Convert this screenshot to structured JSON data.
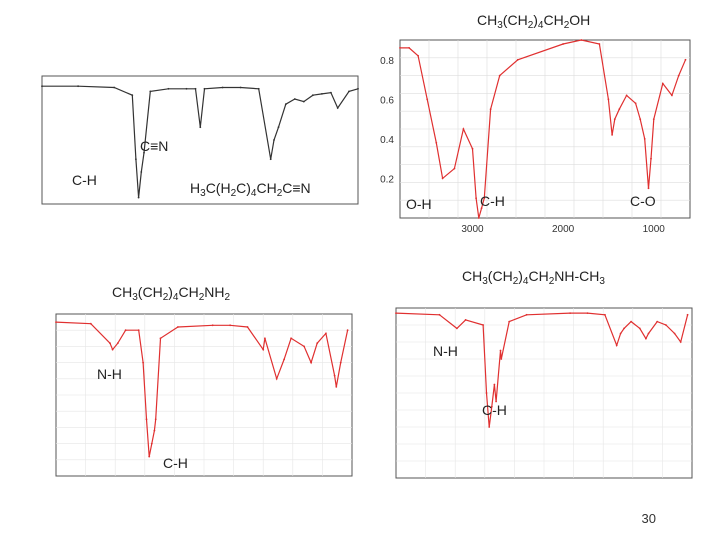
{
  "page_number": "30",
  "spectra": [
    {
      "id": "nitrile",
      "title_parts": [
        "H",
        "3",
        "C(H",
        "2",
        "C)",
        "4",
        "CH",
        "2",
        "C≡N"
      ],
      "annotations": [
        "C≡N",
        "C-H"
      ]
    },
    {
      "id": "alcohol",
      "title_parts": [
        "CH",
        "3",
        "(CH",
        "2",
        ")",
        "4",
        "CH",
        "2",
        "OH"
      ],
      "annotations": [
        "O-H",
        "C-H",
        "C-O"
      ],
      "x_ticks": [
        "3000",
        "2000",
        "1000"
      ],
      "y_ticks": [
        "0.2",
        "0.4",
        "0.6",
        "0.8"
      ]
    },
    {
      "id": "primary-amine",
      "title_parts": [
        "CH",
        "3",
        "(CH",
        "2",
        ")",
        "4",
        "CH",
        "2",
        "NH",
        "2",
        ""
      ],
      "annotations": [
        "N-H",
        "C-H"
      ]
    },
    {
      "id": "secondary-amine",
      "title_parts": [
        "CH",
        "3",
        "(CH",
        "2",
        ")",
        "4",
        "CH",
        "2",
        "NH-CH",
        "3",
        ""
      ],
      "annotations": [
        "N-H",
        "C-H"
      ]
    }
  ],
  "chart_data": [
    {
      "type": "line",
      "title": "H3C(H2C)4CH2C≡N",
      "xlabel": "",
      "ylabel": "",
      "x": [
        4000,
        3600,
        3200,
        3000,
        2960,
        2930,
        2900,
        2870,
        2800,
        2600,
        2400,
        2300,
        2247,
        2200,
        2000,
        1800,
        1600,
        1467,
        1430,
        1380,
        1300,
        1200,
        1100,
        1000,
        900,
        800,
        725,
        600,
        500
      ],
      "series": [
        {
          "values": [
            0.92,
            0.92,
            0.91,
            0.85,
            0.35,
            0.05,
            0.25,
            0.4,
            0.88,
            0.9,
            0.9,
            0.9,
            0.6,
            0.9,
            0.91,
            0.91,
            0.9,
            0.35,
            0.5,
            0.6,
            0.78,
            0.82,
            0.8,
            0.85,
            0.86,
            0.87,
            0.75,
            0.88,
            0.9
          ]
        }
      ]
    },
    {
      "type": "line",
      "title": "CH3(CH2)4CH2OH",
      "xlabel": "",
      "ylabel": "",
      "x_ticks": [
        3000,
        2000,
        1000
      ],
      "ylim": [
        0.0,
        0.9
      ],
      "x": [
        3800,
        3700,
        3600,
        3500,
        3400,
        3330,
        3200,
        3100,
        3000,
        2960,
        2930,
        2900,
        2870,
        2800,
        2700,
        2500,
        2000,
        1800,
        1600,
        1500,
        1460,
        1430,
        1380,
        1300,
        1200,
        1150,
        1100,
        1058,
        1030,
        1000,
        900,
        800,
        725,
        650
      ],
      "series": [
        {
          "values": [
            0.86,
            0.86,
            0.82,
            0.6,
            0.38,
            0.2,
            0.25,
            0.45,
            0.35,
            0.1,
            0.0,
            0.05,
            0.1,
            0.55,
            0.72,
            0.8,
            0.88,
            0.9,
            0.88,
            0.6,
            0.42,
            0.5,
            0.55,
            0.62,
            0.58,
            0.5,
            0.4,
            0.15,
            0.3,
            0.5,
            0.68,
            0.62,
            0.72,
            0.8
          ]
        }
      ]
    },
    {
      "type": "line",
      "title": "CH3(CH2)4CH2NH2",
      "xlabel": "",
      "ylabel": "",
      "x": [
        4000,
        3600,
        3380,
        3350,
        3290,
        3200,
        3050,
        3000,
        2960,
        2930,
        2900,
        2870,
        2855,
        2800,
        2600,
        2200,
        2000,
        1800,
        1620,
        1600,
        1465,
        1380,
        1300,
        1150,
        1070,
        1000,
        900,
        800,
        780,
        730,
        650
      ],
      "series": [
        {
          "values": [
            0.95,
            0.94,
            0.82,
            0.78,
            0.82,
            0.9,
            0.9,
            0.7,
            0.35,
            0.12,
            0.2,
            0.28,
            0.35,
            0.85,
            0.92,
            0.93,
            0.93,
            0.92,
            0.78,
            0.85,
            0.6,
            0.72,
            0.85,
            0.8,
            0.7,
            0.82,
            0.88,
            0.62,
            0.55,
            0.7,
            0.9
          ]
        }
      ]
    },
    {
      "type": "line",
      "title": "CH3(CH2)4CH2NH-CH3",
      "xlabel": "",
      "ylabel": "",
      "x": [
        4000,
        3500,
        3300,
        3200,
        3000,
        2960,
        2930,
        2900,
        2870,
        2850,
        2800,
        2790,
        2700,
        2500,
        2000,
        1800,
        1600,
        1465,
        1420,
        1380,
        1300,
        1200,
        1130,
        1100,
        1000,
        900,
        800,
        730,
        650
      ],
      "series": [
        {
          "values": [
            0.97,
            0.96,
            0.88,
            0.93,
            0.9,
            0.5,
            0.3,
            0.42,
            0.55,
            0.45,
            0.75,
            0.7,
            0.92,
            0.96,
            0.97,
            0.97,
            0.96,
            0.78,
            0.85,
            0.88,
            0.92,
            0.88,
            0.82,
            0.85,
            0.92,
            0.9,
            0.85,
            0.8,
            0.96
          ]
        }
      ]
    }
  ]
}
